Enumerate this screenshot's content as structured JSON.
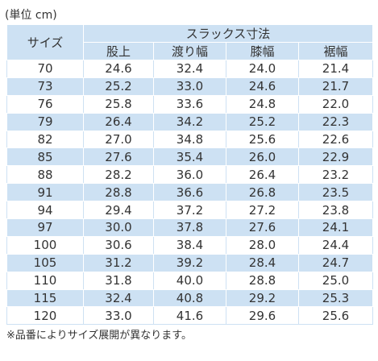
{
  "caption": "(単位 cm)",
  "table": {
    "header": {
      "size": "サイズ",
      "group": "スラックス寸法",
      "columns": [
        "股上",
        "渡り幅",
        "膝幅",
        "裾幅"
      ]
    },
    "rows": [
      [
        "70",
        "24.6",
        "32.4",
        "24.0",
        "21.4"
      ],
      [
        "73",
        "25.2",
        "33.0",
        "24.6",
        "21.7"
      ],
      [
        "76",
        "25.8",
        "33.6",
        "24.8",
        "22.0"
      ],
      [
        "79",
        "26.4",
        "34.2",
        "25.2",
        "22.3"
      ],
      [
        "82",
        "27.0",
        "34.8",
        "25.6",
        "22.6"
      ],
      [
        "85",
        "27.6",
        "35.4",
        "26.0",
        "22.9"
      ],
      [
        "88",
        "28.2",
        "36.0",
        "26.4",
        "23.2"
      ],
      [
        "91",
        "28.8",
        "36.6",
        "26.8",
        "23.5"
      ],
      [
        "94",
        "29.4",
        "37.2",
        "27.2",
        "23.8"
      ],
      [
        "97",
        "30.0",
        "37.8",
        "27.6",
        "24.1"
      ],
      [
        "100",
        "30.6",
        "38.4",
        "28.0",
        "24.4"
      ],
      [
        "105",
        "31.2",
        "39.2",
        "28.4",
        "24.7"
      ],
      [
        "110",
        "31.8",
        "40.0",
        "28.8",
        "25.0"
      ],
      [
        "115",
        "32.4",
        "40.8",
        "29.2",
        "25.3"
      ],
      [
        "120",
        "33.0",
        "41.6",
        "29.6",
        "25.6"
      ]
    ]
  },
  "note": "※品番によりサイズ展開が異なります。"
}
